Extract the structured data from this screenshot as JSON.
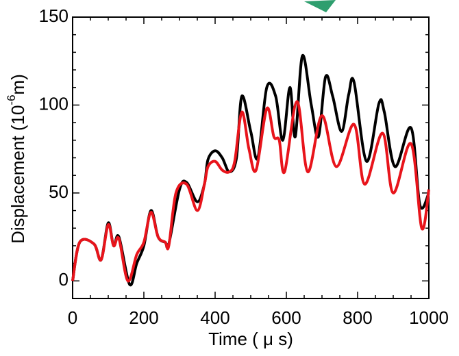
{
  "chart_data": {
    "type": "line",
    "xlabel": "Time ( μ s)",
    "ylabel": [
      "Displacement (10",
      "-6",
      "m)"
    ],
    "xlim": [
      0,
      1000
    ],
    "xticks": [
      0,
      200,
      400,
      600,
      800,
      1000
    ],
    "ylim": [
      -10,
      150
    ],
    "yticks": [
      0,
      50,
      100,
      150
    ],
    "series": [
      {
        "color": "#000000",
        "x": [
          0,
          20,
          60,
          80,
          100,
          115,
          130,
          160,
          180,
          200,
          220,
          240,
          260,
          270,
          300,
          320,
          350,
          370,
          380,
          400,
          420,
          440,
          460,
          475,
          500,
          520,
          545,
          570,
          590,
          610,
          625,
          645,
          670,
          690,
          710,
          730,
          755,
          775,
          790,
          825,
          860,
          875,
          905,
          950,
          975,
          1000
        ],
        "values": [
          0,
          22,
          21,
          12,
          33,
          20,
          25,
          -2,
          10,
          20,
          40,
          25,
          22,
          21,
          52,
          56,
          45,
          55,
          69,
          74,
          70,
          62,
          70,
          105,
          85,
          70,
          110,
          105,
          80,
          110,
          82,
          128,
          100,
          82,
          116,
          105,
          85,
          106,
          113,
          68,
          101,
          96,
          65,
          87,
          43,
          50
        ]
      },
      {
        "color": "#e8141b",
        "x": [
          0,
          20,
          60,
          80,
          100,
          115,
          130,
          155,
          180,
          200,
          220,
          240,
          260,
          270,
          290,
          320,
          350,
          370,
          380,
          400,
          420,
          440,
          455,
          475,
          495,
          515,
          545,
          565,
          580,
          595,
          630,
          660,
          700,
          740,
          790,
          820,
          870,
          900,
          950,
          980,
          1000
        ],
        "values": [
          0,
          22,
          21,
          12,
          32,
          20,
          24,
          0,
          15,
          22,
          39,
          25,
          22,
          20,
          50,
          55,
          40,
          55,
          65,
          68,
          63,
          62,
          68,
          96,
          75,
          63,
          98,
          82,
          80,
          62,
          102,
          62,
          94,
          65,
          89,
          55,
          84,
          50,
          78,
          30,
          52
        ]
      }
    ]
  }
}
